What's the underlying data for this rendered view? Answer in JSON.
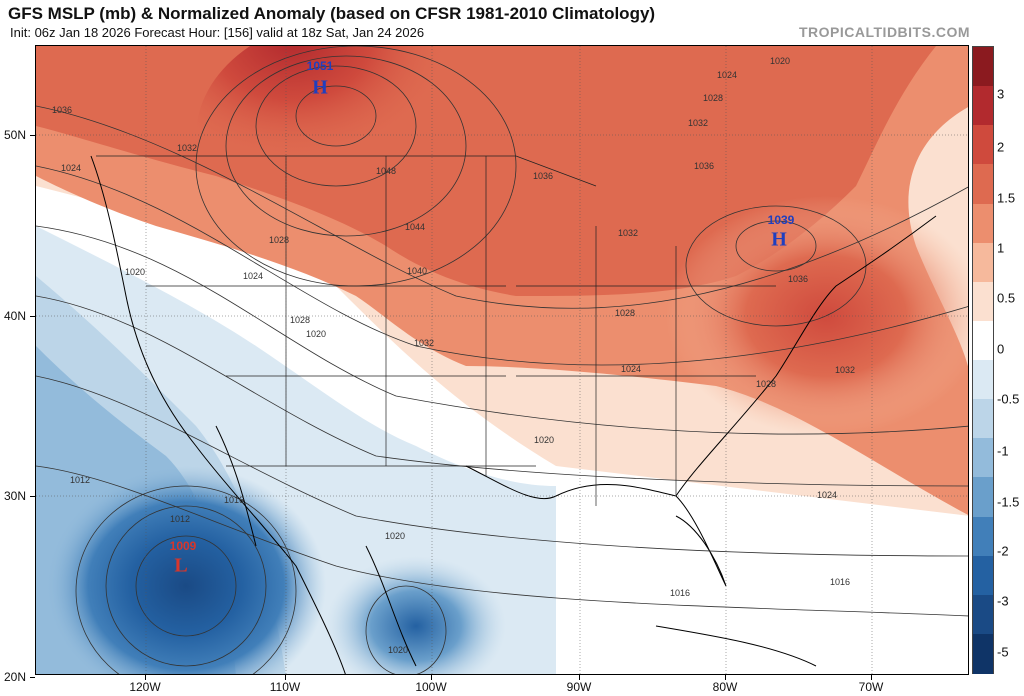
{
  "header": {
    "title": "GFS MSLP (mb) & Normalized Anomaly (based on CFSR 1981-2010 Climatology)",
    "subtitle": "Init: 06z Jan 18 2026   Forecast Hour: [156]   valid at 18z Sat, Jan 24 2026",
    "credit": "TROPICALTIDBITS.COM"
  },
  "axes": {
    "lat_labels": [
      "50N",
      "40N",
      "30N",
      "20N"
    ],
    "lon_labels": [
      "120W",
      "110W",
      "100W",
      "90W",
      "80W",
      "70W"
    ]
  },
  "colorbar": {
    "labels": [
      "3",
      "2",
      "1.5",
      "1",
      "0.5",
      "0",
      "-0.5",
      "-1",
      "-1.5",
      "-2",
      "-3",
      "-5"
    ],
    "colors": [
      "#8b1a1f",
      "#b22a2e",
      "#cf4a3d",
      "#de6a50",
      "#ec8e6e",
      "#f6b99c",
      "#fbe0d0",
      "#ffffff",
      "#dbe9f3",
      "#bcd5e8",
      "#93bbdb",
      "#6a9fcb",
      "#417fb9",
      "#2461a2",
      "#1a4a85",
      "#0f3467"
    ]
  },
  "pressure_centers": [
    {
      "value": "1051",
      "symbol": "H",
      "color": "#1f3fbf"
    },
    {
      "value": "1039",
      "symbol": "H",
      "color": "#1f3fbf"
    },
    {
      "value": "1009",
      "symbol": "L",
      "color": "#d8362b"
    }
  ],
  "isobar_labels": [
    "1020",
    "1024",
    "1028",
    "1036",
    "1032",
    "1048",
    "1044",
    "1040",
    "1024",
    "1028",
    "1020",
    "1032",
    "1036",
    "1032",
    "1036",
    "1032",
    "1028",
    "1024",
    "1036",
    "1028",
    "1032",
    "1024",
    "1028",
    "1020",
    "1020",
    "1016",
    "1016",
    "1012",
    "1016",
    "1012",
    "1020",
    "1020",
    "1024"
  ]
}
